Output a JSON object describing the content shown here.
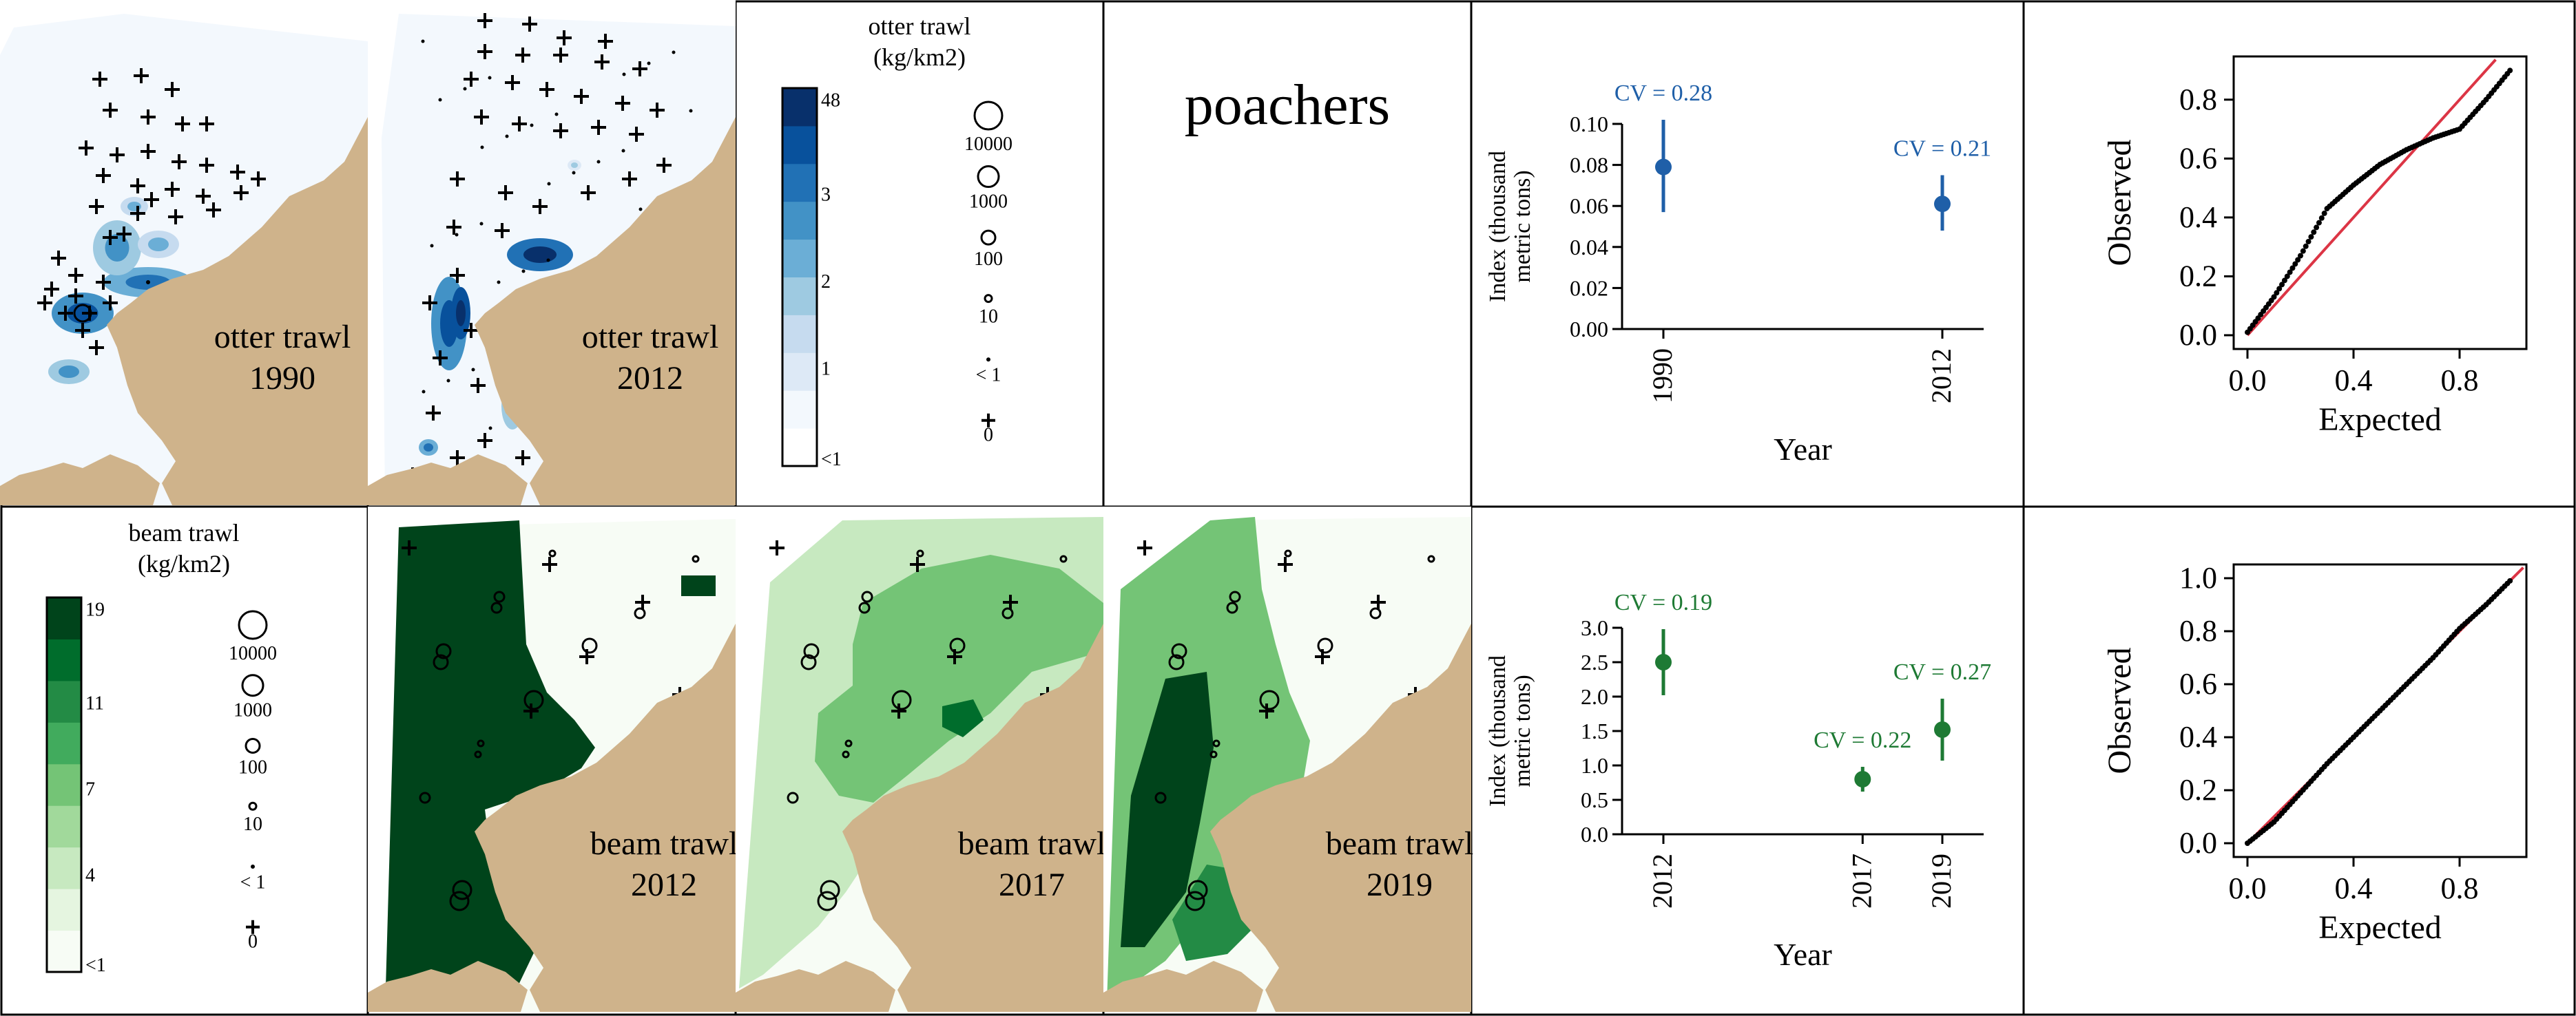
{
  "title": "poachers",
  "colors": {
    "land": "#cfb38b",
    "otter_scale": [
      "#ffffff",
      "#f3f8fd",
      "#dde9f6",
      "#c6dbef",
      "#9ecae1",
      "#6baed6",
      "#4292c6",
      "#2171b5",
      "#08519c",
      "#08306b"
    ],
    "beam_scale": [
      "#f7fcf5",
      "#e5f5e0",
      "#c7e9c0",
      "#a1d99b",
      "#74c476",
      "#41ab5d",
      "#238b45",
      "#006d2c",
      "#00441b"
    ],
    "otter_index": "#1f5fa8",
    "beam_index": "#1e7a34",
    "qq_line": "#dc3545",
    "qq_points": "#000000"
  },
  "maps": {
    "otter": [
      {
        "gear": "otter trawl",
        "year": "1990"
      },
      {
        "gear": "otter trawl",
        "year": "2012"
      }
    ],
    "beam": [
      {
        "gear": "beam trawl",
        "year": "2012"
      },
      {
        "gear": "beam trawl",
        "year": "2017"
      },
      {
        "gear": "beam trawl",
        "year": "2019"
      }
    ]
  },
  "legends": {
    "otter": {
      "title_line1": "otter trawl",
      "title_line2": "(kg/km2)",
      "color_ticks": [
        "48",
        "3",
        "2",
        "1",
        "<1"
      ],
      "size_labels": [
        "10000",
        "1000",
        "100",
        "10",
        "< 1",
        "0"
      ]
    },
    "beam": {
      "title_line1": "beam trawl",
      "title_line2": "(kg/km2)",
      "color_ticks": [
        "19",
        "11",
        "7",
        "4",
        "<1"
      ],
      "size_labels": [
        "10000",
        "1000",
        "100",
        "10",
        "< 1",
        "0"
      ]
    }
  },
  "chart_data": [
    {
      "type": "scatter",
      "subtype": "index-with-error-bars",
      "xlabel": "Year",
      "ylabel_line1": "Index (thousand",
      "ylabel_line2": "metric tons)",
      "ylim": [
        0,
        0.1
      ],
      "yticks": [
        "0.00",
        "0.02",
        "0.04",
        "0.06",
        "0.08",
        "0.10"
      ],
      "x": [
        1990,
        2012
      ],
      "xticks": [
        "1990",
        "2012"
      ],
      "points": [
        {
          "x": 1990,
          "y": 0.079,
          "lo": 0.057,
          "hi": 0.102,
          "label": "CV = 0.28"
        },
        {
          "x": 2012,
          "y": 0.061,
          "lo": 0.048,
          "hi": 0.075,
          "label": "CV = 0.21"
        }
      ]
    },
    {
      "type": "scatter",
      "subtype": "qq",
      "xlabel": "Expected",
      "ylabel": "Observed",
      "xlim": [
        0,
        1
      ],
      "ylim": [
        0,
        0.9
      ],
      "xticks": [
        "0.0",
        "0.4",
        "0.8"
      ],
      "yticks": [
        "0.0",
        "0.2",
        "0.4",
        "0.6",
        "0.8"
      ],
      "reference_line": "1:1",
      "curve": [
        [
          0,
          0.01
        ],
        [
          0.1,
          0.13
        ],
        [
          0.2,
          0.27
        ],
        [
          0.3,
          0.43
        ],
        [
          0.4,
          0.51
        ],
        [
          0.5,
          0.58
        ],
        [
          0.6,
          0.63
        ],
        [
          0.7,
          0.67
        ],
        [
          0.8,
          0.7
        ],
        [
          0.9,
          0.8
        ],
        [
          1.0,
          0.91
        ]
      ]
    },
    {
      "type": "scatter",
      "subtype": "index-with-error-bars",
      "xlabel": "Year",
      "ylabel_line1": "Index (thousand",
      "ylabel_line2": "metric tons)",
      "ylim": [
        0,
        3
      ],
      "yticks": [
        "0.0",
        "0.5",
        "1.0",
        "1.5",
        "2.0",
        "2.5",
        "3.0"
      ],
      "x": [
        2012,
        2017,
        2019
      ],
      "xticks": [
        "2012",
        "2017",
        "2019"
      ],
      "points": [
        {
          "x": 2012,
          "y": 2.5,
          "lo": 2.02,
          "hi": 2.98,
          "label": "CV = 0.19"
        },
        {
          "x": 2017,
          "y": 0.8,
          "lo": 0.62,
          "hi": 0.98,
          "label": "CV = 0.22"
        },
        {
          "x": 2019,
          "y": 1.52,
          "lo": 1.07,
          "hi": 1.97,
          "label": "CV = 0.27"
        }
      ]
    },
    {
      "type": "scatter",
      "subtype": "qq",
      "xlabel": "Expected",
      "ylabel": "Observed",
      "xlim": [
        0,
        1
      ],
      "ylim": [
        0,
        1
      ],
      "xticks": [
        "0.0",
        "0.4",
        "0.8"
      ],
      "yticks": [
        "0.0",
        "0.2",
        "0.4",
        "0.6",
        "0.8",
        "1.0"
      ],
      "reference_line": "1:1",
      "curve": [
        [
          0,
          0.0
        ],
        [
          0.1,
          0.08
        ],
        [
          0.2,
          0.19
        ],
        [
          0.3,
          0.3
        ],
        [
          0.4,
          0.4
        ],
        [
          0.5,
          0.5
        ],
        [
          0.6,
          0.6
        ],
        [
          0.7,
          0.7
        ],
        [
          0.8,
          0.81
        ],
        [
          0.9,
          0.9
        ],
        [
          1.0,
          1.0
        ]
      ]
    }
  ]
}
